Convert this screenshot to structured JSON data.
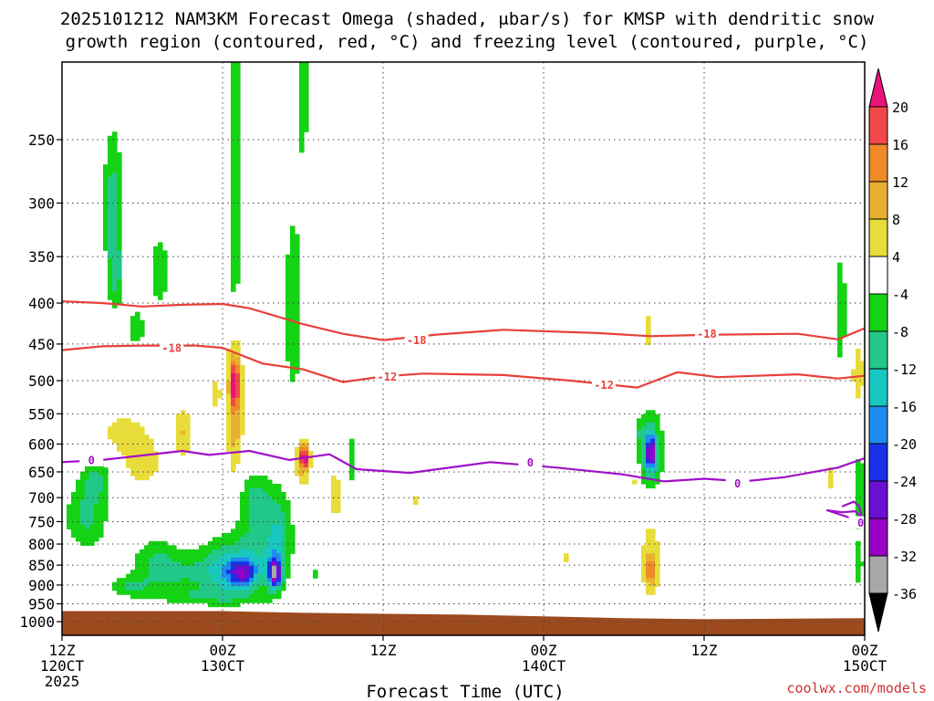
{
  "chart_data": {
    "type": "heatmap",
    "title_line1": "2025101212 NAM3KM Forecast Omega (shaded, μbar/s) for KMSP with dendritic snow",
    "title_line2": "growth region (contoured, red, °C) and freezing level (contoured, purple, °C)",
    "xlabel": "Forecast Time (UTC)",
    "credit": "coolwx.com/models",
    "x_hours_range": [
      0,
      60
    ],
    "y_pressure_range": [
      1040,
      200
    ],
    "y_ticks": [
      250,
      300,
      350,
      400,
      450,
      500,
      550,
      600,
      650,
      700,
      750,
      800,
      850,
      900,
      950,
      1000
    ],
    "x_ticks": [
      {
        "hour": 0,
        "l1": "12Z",
        "l2": "120CT",
        "l3": "2025"
      },
      {
        "hour": 12,
        "l1": "00Z",
        "l2": "130CT",
        "l3": ""
      },
      {
        "hour": 24,
        "l1": "12Z",
        "l2": "",
        "l3": ""
      },
      {
        "hour": 36,
        "l1": "00Z",
        "l2": "140CT",
        "l3": ""
      },
      {
        "hour": 48,
        "l1": "12Z",
        "l2": "",
        "l3": ""
      },
      {
        "hour": 60,
        "l1": "00Z",
        "l2": "150CT",
        "l3": ""
      }
    ],
    "colorbar": {
      "levels": [
        -36,
        -32,
        -28,
        -24,
        -20,
        -16,
        -12,
        -8,
        -4,
        4,
        8,
        12,
        16,
        20
      ],
      "colors": [
        "#000000",
        "#a8a8a8",
        "#9a00c8",
        "#6a10d0",
        "#1a30e8",
        "#1e8cf0",
        "#18c8c0",
        "#22c88a",
        "#14d214",
        "#ffffff",
        "#e8dc3a",
        "#e8b030",
        "#ee8a28",
        "#f04848",
        "#e8147a"
      ]
    },
    "contour_dgz_upper": {
      "label": "-18",
      "hours": [
        0,
        3,
        6,
        9,
        12,
        14,
        18,
        21,
        24,
        28,
        33,
        40,
        44,
        49,
        55,
        58,
        60
      ],
      "pressure": [
        398,
        400,
        404,
        402,
        401,
        406,
        425,
        437,
        445,
        438,
        432,
        436,
        440,
        438,
        437,
        444,
        430
      ]
    },
    "contour_dgz_lower": {
      "label": "-12",
      "hours": [
        0,
        3,
        6,
        10,
        12,
        15,
        18,
        21,
        24,
        27,
        33,
        38,
        43,
        46,
        49,
        55,
        58,
        60
      ],
      "pressure": [
        458,
        453,
        452,
        452,
        455,
        476,
        484,
        502,
        494,
        490,
        492,
        500,
        510,
        488,
        495,
        491,
        497,
        493
      ]
    },
    "contour_freezing": {
      "label": "0",
      "hours": [
        0,
        3,
        6,
        9,
        11,
        14,
        17,
        20,
        22,
        26,
        32,
        37,
        42,
        45,
        48,
        51,
        54,
        58,
        60
      ],
      "pressure": [
        632,
        628,
        620,
        612,
        619,
        612,
        628,
        618,
        645,
        652,
        632,
        642,
        655,
        668,
        663,
        668,
        660,
        642,
        625
      ]
    },
    "contour_freezing_inversion": {
      "hours": [
        58.3,
        59.2,
        59.6,
        59.8,
        59.3,
        58.3,
        57.2,
        60
      ],
      "pressure": [
        718,
        708,
        718,
        742,
        728,
        730,
        726,
        752
      ]
    },
    "label_positions": {
      "dgz_upper": [
        {
          "hour": 26.5,
          "p": 445
        },
        {
          "hour": 48.2,
          "p": 437
        },
        {
          "hour": 8.2,
          "p": 455
        }
      ],
      "dgz_lower": [
        {
          "hour": 24.3,
          "p": 494
        },
        {
          "hour": 40.5,
          "p": 506
        }
      ],
      "freezing": [
        {
          "hour": 2.2,
          "p": 628
        },
        {
          "hour": 35,
          "p": 632
        },
        {
          "hour": 50.5,
          "p": 672
        },
        {
          "hour": 59.7,
          "p": 752
        }
      ]
    },
    "blobs": [
      {
        "t": 1.8,
        "p": 740,
        "dt": 1.6,
        "dp": 70,
        "v": -9
      },
      {
        "t": 2.5,
        "p": 665,
        "dt": 1.0,
        "dp": 40,
        "v": -8
      },
      {
        "t": 3.8,
        "p": 300,
        "dt": 0.7,
        "dp": 58,
        "v": -10
      },
      {
        "t": 4.0,
        "p": 370,
        "dt": 0.6,
        "dp": 40,
        "v": -8
      },
      {
        "t": 5.5,
        "p": 430,
        "dt": 0.8,
        "dp": 28,
        "v": -6
      },
      {
        "t": 7.3,
        "p": 365,
        "dt": 0.9,
        "dp": 45,
        "v": -6
      },
      {
        "t": 4.5,
        "p": 580,
        "dt": 1.7,
        "dp": 32,
        "v": 6
      },
      {
        "t": 6.0,
        "p": 630,
        "dt": 1.5,
        "dp": 45,
        "v": 7
      },
      {
        "t": 9.0,
        "p": 580,
        "dt": 0.7,
        "dp": 45,
        "v": 8
      },
      {
        "t": 11.5,
        "p": 520,
        "dt": 0.5,
        "dp": 36,
        "v": 5
      },
      {
        "t": 12.9,
        "p": 530,
        "dt": 0.6,
        "dp": 120,
        "v": 12
      },
      {
        "t": 12.9,
        "p": 505,
        "dt": 0.3,
        "dp": 28,
        "v": 18
      },
      {
        "t": 13.0,
        "p": 240,
        "dt": 0.5,
        "dp": 120,
        "v": -7
      },
      {
        "t": 12.9,
        "p": 375,
        "dt": 0.4,
        "dp": 80,
        "v": -6
      },
      {
        "t": 18.0,
        "p": 220,
        "dt": 0.5,
        "dp": 55,
        "v": -6
      },
      {
        "t": 17.3,
        "p": 410,
        "dt": 0.7,
        "dp": 110,
        "v": -8
      },
      {
        "t": 18.0,
        "p": 630,
        "dt": 0.6,
        "dp": 45,
        "v": 10
      },
      {
        "t": 18.1,
        "p": 625,
        "dt": 0.3,
        "dp": 18,
        "v": 17
      },
      {
        "t": 20.4,
        "p": 695,
        "dt": 0.6,
        "dp": 50,
        "v": 7
      },
      {
        "t": 21.6,
        "p": 625,
        "dt": 0.3,
        "dp": 60,
        "v": -6
      },
      {
        "t": 5.0,
        "p": 905,
        "dt": 1.6,
        "dp": 25,
        "v": -7
      },
      {
        "t": 8.5,
        "p": 870,
        "dt": 3.2,
        "dp": 55,
        "v": -8
      },
      {
        "t": 12.2,
        "p": 860,
        "dt": 1.8,
        "dp": 70,
        "v": -12
      },
      {
        "t": 13.5,
        "p": 870,
        "dt": 1.0,
        "dp": 32,
        "v": -18
      },
      {
        "t": 14.8,
        "p": 810,
        "dt": 1.8,
        "dp": 110,
        "v": -10
      },
      {
        "t": 15.9,
        "p": 870,
        "dt": 0.5,
        "dp": 38,
        "v": -28
      },
      {
        "t": 16.3,
        "p": 780,
        "dt": 0.9,
        "dp": 90,
        "v": -8
      },
      {
        "t": 19.0,
        "p": 870,
        "dt": 0.5,
        "dp": 25,
        "v": -5
      },
      {
        "t": 11.0,
        "p": 930,
        "dt": 4.0,
        "dp": 22,
        "v": -6
      },
      {
        "t": 7.0,
        "p": 830,
        "dt": 1.5,
        "dp": 55,
        "v": -5
      },
      {
        "t": 14.5,
        "p": 700,
        "dt": 1.2,
        "dp": 45,
        "v": -7
      },
      {
        "t": 26.3,
        "p": 705,
        "dt": 0.4,
        "dp": 12,
        "v": 6
      },
      {
        "t": 37.6,
        "p": 830,
        "dt": 0.2,
        "dp": 15,
        "v": 6
      },
      {
        "t": 43.8,
        "p": 435,
        "dt": 0.2,
        "dp": 40,
        "v": 5
      },
      {
        "t": 43.2,
        "p": 580,
        "dt": 0.3,
        "dp": 25,
        "v": -5
      },
      {
        "t": 42.9,
        "p": 670,
        "dt": 0.3,
        "dp": 20,
        "v": 6
      },
      {
        "t": 44.0,
        "p": 615,
        "dt": 0.9,
        "dp": 70,
        "v": -12
      },
      {
        "t": 44.0,
        "p": 615,
        "dt": 0.35,
        "dp": 28,
        "v": -22
      },
      {
        "t": 44.0,
        "p": 840,
        "dt": 0.8,
        "dp": 110,
        "v": 7
      },
      {
        "t": 44.0,
        "p": 865,
        "dt": 0.4,
        "dp": 30,
        "v": 11
      },
      {
        "t": 51.5,
        "p": 405,
        "dt": 0.15,
        "dp": 10,
        "v": -5
      },
      {
        "t": 57.4,
        "p": 660,
        "dt": 0.3,
        "dp": 40,
        "v": 5
      },
      {
        "t": 58.2,
        "p": 410,
        "dt": 0.5,
        "dp": 90,
        "v": -6
      },
      {
        "t": 59.5,
        "p": 490,
        "dt": 0.5,
        "dp": 45,
        "v": 7
      },
      {
        "t": 59.6,
        "p": 690,
        "dt": 0.5,
        "dp": 80,
        "v": -8
      },
      {
        "t": 59.5,
        "p": 850,
        "dt": 0.5,
        "dp": 60,
        "v": -6
      }
    ],
    "ground_pressure": [
      [
        0,
        970
      ],
      [
        12,
        970
      ],
      [
        18,
        975
      ],
      [
        30,
        980
      ],
      [
        42,
        990
      ],
      [
        48,
        993
      ],
      [
        60,
        990
      ]
    ]
  }
}
